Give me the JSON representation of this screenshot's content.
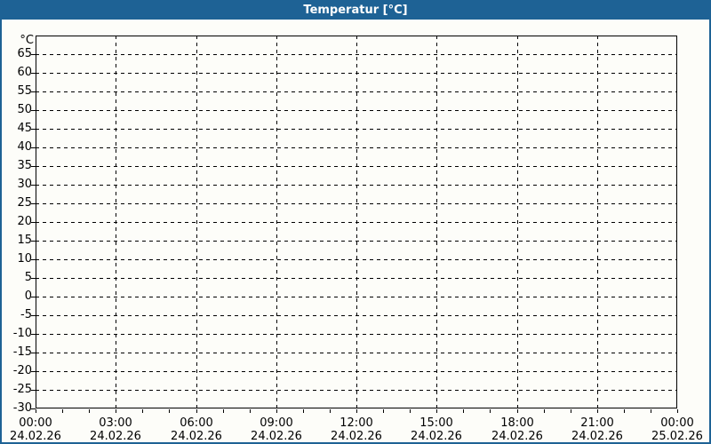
{
  "window": {
    "title": "Temperatur [°C]"
  },
  "colors": {
    "titlebar_blue": "#1e6295",
    "window_border_blue": "#1e6295",
    "background": "#fdfdf9",
    "gridline": "#000000",
    "axis_text": "#000000",
    "title_text": "#ffffff"
  },
  "chart_data": {
    "type": "line",
    "title": "Temperatur [°C]",
    "xlabel": "",
    "ylabel": "°C",
    "ylim": [
      -30,
      70
    ],
    "y_tick_step": 5,
    "y_ticks": [
      65,
      60,
      55,
      50,
      45,
      40,
      35,
      30,
      25,
      20,
      15,
      10,
      5,
      0,
      -5,
      -10,
      -15,
      -20,
      -25,
      -30
    ],
    "x_hours_span": 24,
    "x_minor_tick_hours": 1,
    "x_major_ticks": [
      {
        "hour": 0,
        "time": "00:00",
        "date": "24.02.26"
      },
      {
        "hour": 3,
        "time": "03:00",
        "date": "24.02.26"
      },
      {
        "hour": 6,
        "time": "06:00",
        "date": "24.02.26"
      },
      {
        "hour": 9,
        "time": "09:00",
        "date": "24.02.26"
      },
      {
        "hour": 12,
        "time": "12:00",
        "date": "24.02.26"
      },
      {
        "hour": 15,
        "time": "15:00",
        "date": "24.02.26"
      },
      {
        "hour": 18,
        "time": "18:00",
        "date": "24.02.26"
      },
      {
        "hour": 21,
        "time": "21:00",
        "date": "24.02.26"
      },
      {
        "hour": 24,
        "time": "00:00",
        "date": "25.02.26"
      }
    ],
    "grid": "dashed",
    "legend_position": "none",
    "series": []
  }
}
